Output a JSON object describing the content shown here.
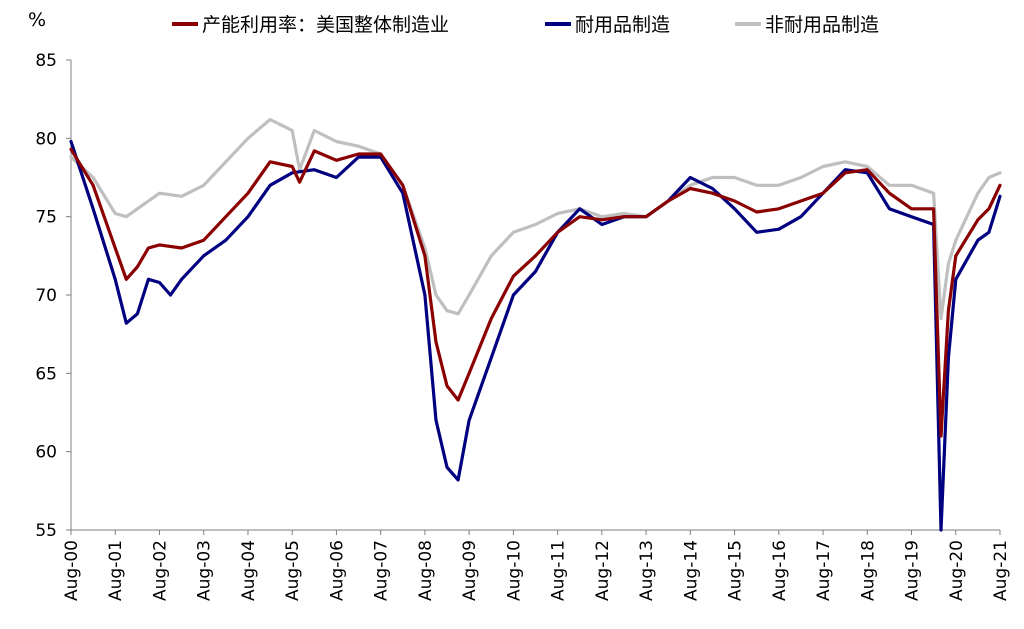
{
  "chart_data": {
    "type": "line",
    "unit": "%",
    "ylim": [
      55,
      85
    ],
    "yticks": [
      55,
      60,
      65,
      70,
      75,
      80,
      85
    ],
    "x_ticks": [
      "Aug-00",
      "Aug-01",
      "Aug-02",
      "Aug-03",
      "Aug-04",
      "Aug-05",
      "Aug-06",
      "Aug-07",
      "Aug-08",
      "Aug-09",
      "Aug-10",
      "Aug-11",
      "Aug-12",
      "Aug-13",
      "Aug-14",
      "Aug-15",
      "Aug-16",
      "Aug-17",
      "Aug-18",
      "Aug-19",
      "Aug-20",
      "Aug-21"
    ],
    "grid": false,
    "legend_position": "top",
    "series": [
      {
        "name": "产能利用率：美国整体制造业",
        "color": "#8B0000",
        "points": [
          [
            "Aug-00",
            79.3
          ],
          [
            "Feb-01",
            77.0
          ],
          [
            "Aug-01",
            73.0
          ],
          [
            "Nov-01",
            71.0
          ],
          [
            "Feb-02",
            71.8
          ],
          [
            "May-02",
            73.0
          ],
          [
            "Aug-02",
            73.2
          ],
          [
            "Feb-03",
            73.0
          ],
          [
            "Aug-03",
            73.5
          ],
          [
            "Feb-04",
            75.0
          ],
          [
            "Aug-04",
            76.5
          ],
          [
            "Feb-05",
            78.5
          ],
          [
            "Aug-05",
            78.2
          ],
          [
            "Oct-05",
            77.2
          ],
          [
            "Feb-06",
            79.2
          ],
          [
            "Aug-06",
            78.6
          ],
          [
            "Feb-07",
            79.0
          ],
          [
            "Aug-07",
            79.0
          ],
          [
            "Feb-08",
            77.0
          ],
          [
            "Aug-08",
            72.5
          ],
          [
            "Nov-08",
            67.0
          ],
          [
            "Feb-09",
            64.2
          ],
          [
            "May-09",
            63.3
          ],
          [
            "Aug-09",
            65.0
          ],
          [
            "Feb-10",
            68.5
          ],
          [
            "Aug-10",
            71.2
          ],
          [
            "Feb-11",
            72.5
          ],
          [
            "Aug-11",
            74.0
          ],
          [
            "Feb-12",
            75.0
          ],
          [
            "Aug-12",
            74.8
          ],
          [
            "Feb-13",
            75.0
          ],
          [
            "Aug-13",
            75.0
          ],
          [
            "Feb-14",
            76.0
          ],
          [
            "Aug-14",
            76.8
          ],
          [
            "Feb-15",
            76.5
          ],
          [
            "Aug-15",
            76.0
          ],
          [
            "Feb-16",
            75.3
          ],
          [
            "Aug-16",
            75.5
          ],
          [
            "Feb-17",
            76.0
          ],
          [
            "Aug-17",
            76.5
          ],
          [
            "Feb-18",
            77.8
          ],
          [
            "Aug-18",
            78.0
          ],
          [
            "Feb-19",
            76.5
          ],
          [
            "Aug-19",
            75.5
          ],
          [
            "Feb-20",
            75.5
          ],
          [
            "Apr-20",
            61.0
          ],
          [
            "Jun-20",
            69.0
          ],
          [
            "Aug-20",
            72.5
          ],
          [
            "Feb-21",
            74.8
          ],
          [
            "May-21",
            75.5
          ],
          [
            "Aug-21",
            77.0
          ]
        ]
      },
      {
        "name": "耐用品制造",
        "color": "#000080",
        "points": [
          [
            "Aug-00",
            79.8
          ],
          [
            "Feb-01",
            75.5
          ],
          [
            "Aug-01",
            71.0
          ],
          [
            "Nov-01",
            68.2
          ],
          [
            "Feb-02",
            68.8
          ],
          [
            "May-02",
            71.0
          ],
          [
            "Aug-02",
            70.8
          ],
          [
            "Nov-02",
            70.0
          ],
          [
            "Feb-03",
            71.0
          ],
          [
            "Aug-03",
            72.5
          ],
          [
            "Feb-04",
            73.5
          ],
          [
            "Aug-04",
            75.0
          ],
          [
            "Feb-05",
            77.0
          ],
          [
            "Aug-05",
            77.8
          ],
          [
            "Feb-06",
            78.0
          ],
          [
            "Aug-06",
            77.5
          ],
          [
            "Feb-07",
            78.8
          ],
          [
            "Aug-07",
            78.8
          ],
          [
            "Feb-08",
            76.5
          ],
          [
            "Aug-08",
            70.0
          ],
          [
            "Nov-08",
            62.0
          ],
          [
            "Feb-09",
            59.0
          ],
          [
            "May-09",
            58.2
          ],
          [
            "Aug-09",
            62.0
          ],
          [
            "Feb-10",
            66.0
          ],
          [
            "Aug-10",
            70.0
          ],
          [
            "Feb-11",
            71.5
          ],
          [
            "Aug-11",
            74.0
          ],
          [
            "Feb-12",
            75.5
          ],
          [
            "Aug-12",
            74.5
          ],
          [
            "Feb-13",
            75.0
          ],
          [
            "Aug-13",
            75.0
          ],
          [
            "Feb-14",
            76.0
          ],
          [
            "Aug-14",
            77.5
          ],
          [
            "Feb-15",
            76.8
          ],
          [
            "Aug-15",
            75.5
          ],
          [
            "Feb-16",
            74.0
          ],
          [
            "Aug-16",
            74.2
          ],
          [
            "Feb-17",
            75.0
          ],
          [
            "Aug-17",
            76.5
          ],
          [
            "Feb-18",
            78.0
          ],
          [
            "Aug-18",
            77.8
          ],
          [
            "Feb-19",
            75.5
          ],
          [
            "Aug-19",
            75.0
          ],
          [
            "Feb-20",
            74.5
          ],
          [
            "Apr-20",
            55.0
          ],
          [
            "Jun-20",
            66.0
          ],
          [
            "Aug-20",
            71.0
          ],
          [
            "Feb-21",
            73.5
          ],
          [
            "May-21",
            74.0
          ],
          [
            "Aug-21",
            76.3
          ]
        ]
      },
      {
        "name": "非耐用品制造",
        "color": "#BFBFBF",
        "points": [
          [
            "Aug-00",
            78.8
          ],
          [
            "Feb-01",
            77.5
          ],
          [
            "Aug-01",
            75.2
          ],
          [
            "Nov-01",
            75.0
          ],
          [
            "Feb-02",
            75.5
          ],
          [
            "Aug-02",
            76.5
          ],
          [
            "Feb-03",
            76.3
          ],
          [
            "Aug-03",
            77.0
          ],
          [
            "Feb-04",
            78.5
          ],
          [
            "Aug-04",
            80.0
          ],
          [
            "Feb-05",
            81.2
          ],
          [
            "Aug-05",
            80.5
          ],
          [
            "Oct-05",
            78.0
          ],
          [
            "Feb-06",
            80.5
          ],
          [
            "Aug-06",
            79.8
          ],
          [
            "Feb-07",
            79.5
          ],
          [
            "Aug-07",
            79.0
          ],
          [
            "Feb-08",
            77.0
          ],
          [
            "Aug-08",
            73.0
          ],
          [
            "Nov-08",
            70.0
          ],
          [
            "Feb-09",
            69.0
          ],
          [
            "May-09",
            68.8
          ],
          [
            "Aug-09",
            70.0
          ],
          [
            "Feb-10",
            72.5
          ],
          [
            "Aug-10",
            74.0
          ],
          [
            "Feb-11",
            74.5
          ],
          [
            "Aug-11",
            75.2
          ],
          [
            "Feb-12",
            75.5
          ],
          [
            "Aug-12",
            75.0
          ],
          [
            "Feb-13",
            75.2
          ],
          [
            "Aug-13",
            75.0
          ],
          [
            "Feb-14",
            76.0
          ],
          [
            "Aug-14",
            77.0
          ],
          [
            "Feb-15",
            77.5
          ],
          [
            "Aug-15",
            77.5
          ],
          [
            "Feb-16",
            77.0
          ],
          [
            "Aug-16",
            77.0
          ],
          [
            "Feb-17",
            77.5
          ],
          [
            "Aug-17",
            78.2
          ],
          [
            "Feb-18",
            78.5
          ],
          [
            "Aug-18",
            78.2
          ],
          [
            "Feb-19",
            77.0
          ],
          [
            "Aug-19",
            77.0
          ],
          [
            "Feb-20",
            76.5
          ],
          [
            "Apr-20",
            68.5
          ],
          [
            "Jun-20",
            72.0
          ],
          [
            "Aug-20",
            73.5
          ],
          [
            "Feb-21",
            76.5
          ],
          [
            "May-21",
            77.5
          ],
          [
            "Aug-21",
            77.8
          ]
        ]
      }
    ]
  }
}
